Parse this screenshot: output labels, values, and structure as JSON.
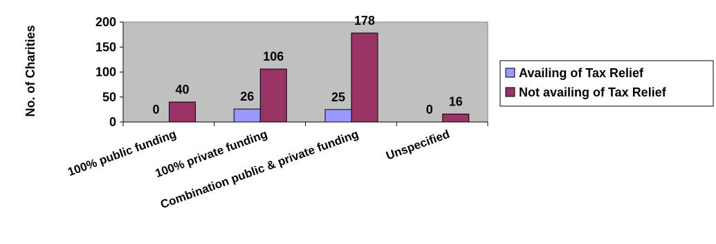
{
  "chart_data": {
    "type": "bar",
    "categories": [
      "100% public funding",
      "100% private funding",
      "Combination public & private funding",
      "Unspecified"
    ],
    "series": [
      {
        "name": "Availing of Tax Relief",
        "values": [
          0,
          26,
          25,
          0
        ],
        "color": "#9999FF"
      },
      {
        "name": "Not availing of Tax Relief",
        "values": [
          40,
          106,
          178,
          16
        ],
        "color": "#993366"
      }
    ],
    "data_labels": [
      [
        "0",
        "26",
        "25",
        "0"
      ],
      [
        "40",
        "106",
        "178",
        "16"
      ]
    ],
    "ylabel": "No. of Charities",
    "ylim": [
      0,
      200
    ],
    "yticks": [
      0,
      50,
      100,
      150,
      200
    ],
    "plot_background": "#C0C0C0",
    "grid": false,
    "legend_position": "right"
  }
}
